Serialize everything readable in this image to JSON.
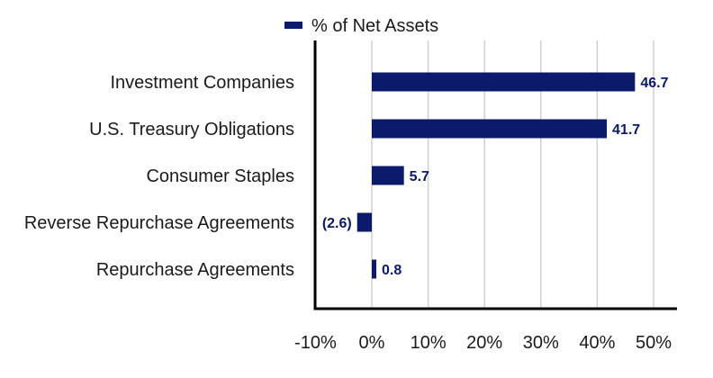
{
  "chart_data": {
    "type": "bar",
    "orientation": "horizontal",
    "categories": [
      "Investment Companies",
      "U.S. Treasury Obligations",
      "Consumer Staples",
      "Reverse Repurchase Agreements",
      "Repurchase Agreements"
    ],
    "series": [
      {
        "name": "% of Net Assets",
        "values": [
          46.7,
          41.7,
          5.7,
          -2.6,
          0.8
        ],
        "value_labels": [
          "46.7",
          "41.7",
          "5.7",
          "(2.6)",
          "0.8"
        ]
      }
    ],
    "xlim": [
      -10,
      50
    ],
    "xticks": [
      -10,
      0,
      10,
      20,
      30,
      40,
      50
    ],
    "xtick_labels": [
      "-10%",
      "0%",
      "10%",
      "20%",
      "30%",
      "40%",
      "50%"
    ],
    "grid": "vertical",
    "legend_position": "top",
    "colors": {
      "bar": "#0c1a6b",
      "label": "#0c1a6b",
      "grid": "#d0d0d0",
      "axis": "#000000"
    }
  }
}
